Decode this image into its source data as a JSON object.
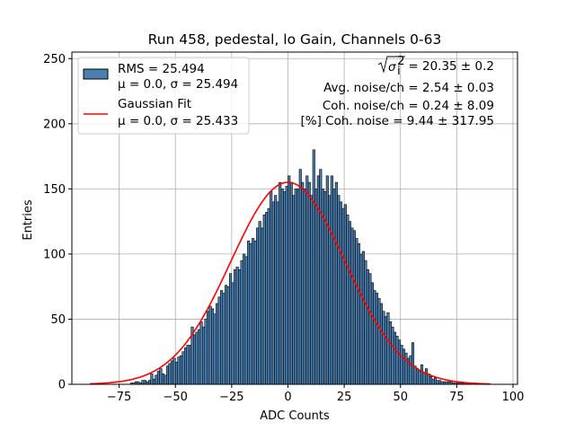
{
  "chart_data": {
    "type": "bar",
    "title": "Run 458, pedestal, lo Gain, Channels 0-63",
    "xlabel": "ADC Counts",
    "ylabel": "Entries",
    "xlim": [
      -96,
      102
    ],
    "ylim": [
      0,
      255
    ],
    "xticks": [
      -75,
      -50,
      -25,
      0,
      25,
      50,
      75,
      100
    ],
    "xtick_labels": [
      "−75",
      "−50",
      "−25",
      "0",
      "25",
      "50",
      "75",
      "100"
    ],
    "yticks": [
      0,
      50,
      100,
      150,
      200,
      250
    ],
    "ytick_labels": [
      "0",
      "50",
      "100",
      "150",
      "200",
      "250"
    ],
    "grid": true,
    "legend_position": "top-left",
    "bins": {
      "start": -70,
      "width": 1,
      "counts": [
        1,
        1,
        2,
        2,
        1,
        3,
        3,
        2,
        3,
        8,
        4,
        7,
        10,
        12,
        8,
        7,
        14,
        16,
        18,
        20,
        17,
        21,
        22,
        25,
        28,
        30,
        30,
        44,
        38,
        40,
        42,
        48,
        44,
        50,
        56,
        60,
        58,
        54,
        62,
        67,
        72,
        70,
        76,
        75,
        85,
        78,
        88,
        90,
        88,
        95,
        100,
        98,
        110,
        108,
        112,
        110,
        120,
        125,
        120,
        130,
        132,
        135,
        148,
        140,
        145,
        140,
        155,
        150,
        148,
        152,
        160,
        155,
        145,
        150,
        150,
        165,
        155,
        150,
        160,
        155,
        145,
        180,
        150,
        160,
        165,
        150,
        148,
        160,
        145,
        160,
        150,
        155,
        145,
        140,
        135,
        138,
        130,
        125,
        120,
        118,
        112,
        108,
        100,
        102,
        95,
        88,
        85,
        78,
        72,
        70,
        66,
        62,
        56,
        52,
        55,
        48,
        44,
        40,
        37,
        34,
        30,
        27,
        24,
        20,
        22,
        32,
        14,
        12,
        10,
        15,
        9,
        12,
        8,
        6,
        4,
        5,
        3,
        3,
        2,
        2,
        2,
        2,
        2,
        1,
        1,
        1,
        1,
        1,
        1,
        1,
        1
      ]
    },
    "series": [
      {
        "name": "RMS = 25.494",
        "subtitle": "μ = 0.0, σ = 25.494",
        "type": "histogram",
        "color": "#4b7fb0",
        "edge_color": "#000000"
      },
      {
        "name": "Gaussian Fit",
        "subtitle": "μ = 0.0, σ = 25.433",
        "type": "line",
        "color": "#ff0000",
        "mu": 0.0,
        "sigma": 25.433,
        "amplitude": 155,
        "x_range": [
          -88,
          90
        ]
      }
    ],
    "annotations": [
      {
        "prefix": "√σ",
        "super": "2",
        "sub": "i",
        "text": " = 20.35 ± 0.2"
      },
      {
        "text": "Avg. noise/ch = 2.54 ± 0.03"
      },
      {
        "text": "Coh. noise/ch = 0.24 ± 8.09"
      },
      {
        "text": "[%] Coh. noise = 9.44 ± 317.95"
      }
    ]
  },
  "colors": {
    "bar_fill": "#4b7fb0",
    "bar_edge": "#000000",
    "fit_line": "#ff0000",
    "grid": "#b0b0b0"
  }
}
